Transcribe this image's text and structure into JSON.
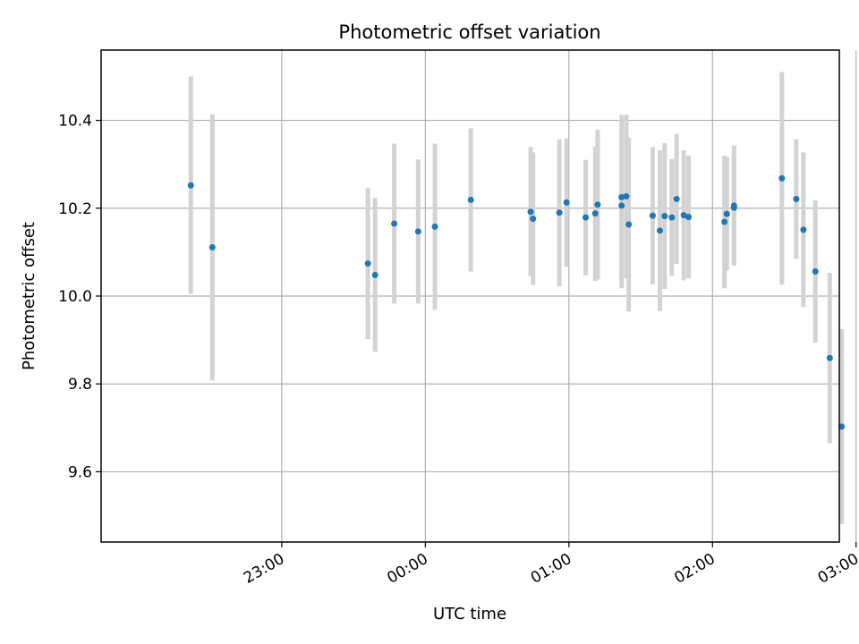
{
  "chart_data": {
    "type": "scatter",
    "title": "Photometric offset variation",
    "xlabel": "UTC time",
    "ylabel": "Photometric offset",
    "xlim_minutes": [
      -135.5,
      173.0
    ],
    "ylim": [
      9.44,
      10.56
    ],
    "grid": true,
    "legend": "none",
    "colors": {
      "point": "#1f77b4",
      "errorbar": "#d3d3d3"
    },
    "x_ticks": [
      {
        "label": "23:00",
        "minutes": -60
      },
      {
        "label": "00:00",
        "minutes": 0
      },
      {
        "label": "01:00",
        "minutes": 60
      },
      {
        "label": "02:00",
        "minutes": 120
      },
      {
        "label": "03:00",
        "minutes": 180
      }
    ],
    "y_ticks": [
      {
        "label": "9.6",
        "value": 9.6
      },
      {
        "label": "9.8",
        "value": 9.8
      },
      {
        "label": "10.0",
        "value": 10.0
      },
      {
        "label": "10.2",
        "value": 10.2
      },
      {
        "label": "10.4",
        "value": 10.4
      }
    ],
    "points": [
      {
        "time": "22:22",
        "y": 10.252,
        "lo": 10.005,
        "hi": 10.5
      },
      {
        "time": "22:31",
        "y": 10.111,
        "lo": 9.808,
        "hi": 10.414
      },
      {
        "time": "23:36",
        "y": 10.074,
        "lo": 9.902,
        "hi": 10.246
      },
      {
        "time": "23:39",
        "y": 10.048,
        "lo": 9.873,
        "hi": 10.223
      },
      {
        "time": "23:47",
        "y": 10.165,
        "lo": 9.983,
        "hi": 10.347
      },
      {
        "time": "23:57",
        "y": 10.147,
        "lo": 9.983,
        "hi": 10.311
      },
      {
        "time": "00:04",
        "y": 10.158,
        "lo": 9.969,
        "hi": 10.347
      },
      {
        "time": "00:19",
        "y": 10.219,
        "lo": 10.056,
        "hi": 10.382
      },
      {
        "time": "00:44",
        "y": 10.192,
        "lo": 10.045,
        "hi": 10.339
      },
      {
        "time": "00:45",
        "y": 10.176,
        "lo": 10.025,
        "hi": 10.327
      },
      {
        "time": "00:56",
        "y": 10.19,
        "lo": 10.022,
        "hi": 10.357
      },
      {
        "time": "00:59",
        "y": 10.213,
        "lo": 10.067,
        "hi": 10.359
      },
      {
        "time": "01:07",
        "y": 10.179,
        "lo": 10.047,
        "hi": 10.31
      },
      {
        "time": "01:11",
        "y": 10.188,
        "lo": 10.034,
        "hi": 10.341
      },
      {
        "time": "01:12",
        "y": 10.208,
        "lo": 10.038,
        "hi": 10.379
      },
      {
        "time": "01:22",
        "y": 10.225,
        "lo": 10.037,
        "hi": 10.413
      },
      {
        "time": "01:22",
        "y": 10.206,
        "lo": 10.018,
        "hi": 10.394
      },
      {
        "time": "01:24",
        "y": 10.227,
        "lo": 10.041,
        "hi": 10.413
      },
      {
        "time": "01:25",
        "y": 10.163,
        "lo": 9.965,
        "hi": 10.361
      },
      {
        "time": "01:35",
        "y": 10.183,
        "lo": 10.027,
        "hi": 10.339
      },
      {
        "time": "01:38",
        "y": 10.149,
        "lo": 9.966,
        "hi": 10.332
      },
      {
        "time": "01:40",
        "y": 10.182,
        "lo": 10.016,
        "hi": 10.348
      },
      {
        "time": "01:43",
        "y": 10.179,
        "lo": 10.046,
        "hi": 10.312
      },
      {
        "time": "01:45",
        "y": 10.221,
        "lo": 10.073,
        "hi": 10.369
      },
      {
        "time": "01:48",
        "y": 10.184,
        "lo": 10.036,
        "hi": 10.332
      },
      {
        "time": "01:50",
        "y": 10.18,
        "lo": 10.04,
        "hi": 10.32
      },
      {
        "time": "02:05",
        "y": 10.169,
        "lo": 10.018,
        "hi": 10.32
      },
      {
        "time": "02:06",
        "y": 10.187,
        "lo": 10.058,
        "hi": 10.316
      },
      {
        "time": "02:09",
        "y": 10.206,
        "lo": 10.069,
        "hi": 10.343
      },
      {
        "time": "02:09",
        "y": 10.201,
        "lo": 10.075,
        "hi": 10.327
      },
      {
        "time": "02:29",
        "y": 10.268,
        "lo": 10.026,
        "hi": 10.51
      },
      {
        "time": "02:35",
        "y": 10.221,
        "lo": 10.085,
        "hi": 10.357
      },
      {
        "time": "02:38",
        "y": 10.151,
        "lo": 9.975,
        "hi": 10.327
      },
      {
        "time": "02:43",
        "y": 10.056,
        "lo": 9.894,
        "hi": 10.218
      },
      {
        "time": "02:49",
        "y": 9.859,
        "lo": 9.665,
        "hi": 10.053
      },
      {
        "time": "02:54",
        "y": 9.703,
        "lo": 9.481,
        "hi": 9.925
      }
    ]
  }
}
